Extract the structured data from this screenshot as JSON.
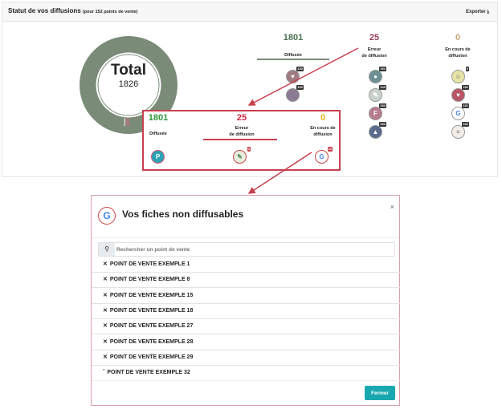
{
  "header": {
    "title": "Statut de vos diffusions",
    "subtitle": "(pour 152 points de vente)",
    "export_label": "Exporter"
  },
  "donut": {
    "label": "Total",
    "value": "1826",
    "color": "#7a8b78",
    "error_color": "#a07b7f"
  },
  "stats": [
    {
      "value": "1801",
      "label": "Diffusée",
      "color": "#4a7050"
    },
    {
      "value": "25",
      "label1": "Erreur",
      "label2": "de diffusion",
      "color": "#9a3f55"
    },
    {
      "value": "0",
      "label1": "En cours de",
      "label2": "diffusion",
      "color": "#c9a97a"
    }
  ],
  "icons": {
    "diffusee": [
      {
        "name": "heart",
        "badge": "152",
        "color": "#a07b7f"
      },
      {
        "name": "circle",
        "badge": "152",
        "color": "#8b7a93"
      }
    ],
    "erreur": [
      {
        "name": "pin",
        "badge": "151",
        "color": "#6b8f92"
      },
      {
        "name": "pen",
        "badge": "149",
        "color": "#c9d3cb"
      },
      {
        "name": "f",
        "badge": "152",
        "color": "#b77b8c"
      },
      {
        "name": "car",
        "badge": "152",
        "color": "#5a6b8e"
      }
    ],
    "encours": [
      {
        "name": "smile",
        "badge": "0",
        "color": "#e8e3a6"
      },
      {
        "name": "globe",
        "badge": "152",
        "color": "#b85565"
      },
      {
        "name": "google",
        "badge": "131",
        "color": "#fff"
      },
      {
        "name": "doc",
        "badge": "152",
        "color": "#f3eee9"
      }
    ]
  },
  "zoom_box": {
    "stats": [
      {
        "value": "1801",
        "label": "Diffusée",
        "color": "#2e9a3d"
      },
      {
        "value": "25",
        "label1": "Erreur",
        "label2": "de diffusion",
        "color": "#d0283f"
      },
      {
        "value": "0",
        "label1": "En cours de",
        "label2": "diffusion",
        "color": "#f2b21a"
      }
    ],
    "icons": [
      {
        "name": "pin",
        "badge": ""
      },
      {
        "name": "pen",
        "badge": "3"
      },
      {
        "name": "google",
        "badge": "21"
      }
    ]
  },
  "modal": {
    "title": "Vos fiches non diffusables",
    "search_placeholder": "Rechercher un point de vente",
    "items": [
      "POINT DE VENTE EXEMPLE 1",
      "POINT DE VENTE EXEMPLE 8",
      "POINT DE VENTE EXEMPLE 15",
      "POINT DE VENTE EXEMPLE 18",
      "POINT DE VENTE EXEMPLE 27",
      "POINT DE VENTE EXEMPLE 28",
      "POINT DE VENTE EXEMPLE 29",
      "POINT DE VENTE EXEMPLE 32"
    ],
    "close_label": "Fermer"
  },
  "accent": "#c8404f"
}
